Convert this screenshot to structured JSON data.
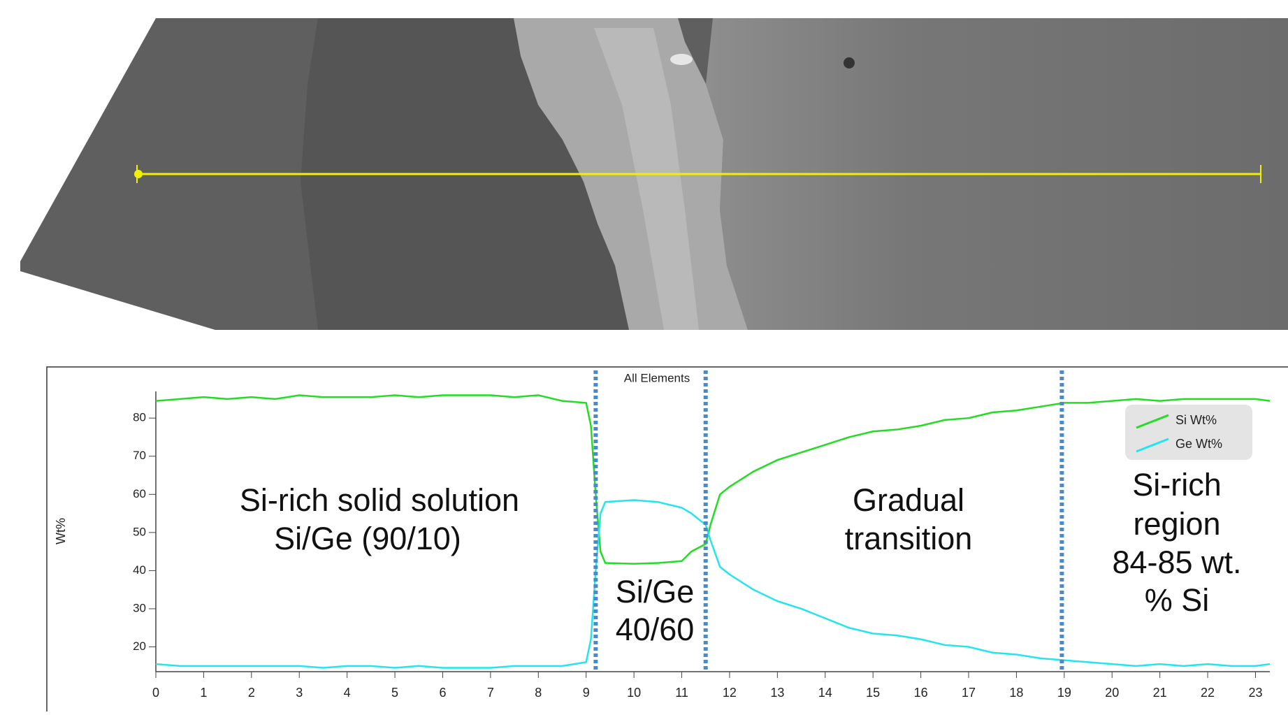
{
  "chart_data": {
    "type": "line",
    "title": "All Elements",
    "y_label": "Wt%",
    "x": [
      0,
      0.5,
      1,
      1.5,
      2,
      2.5,
      3,
      3.5,
      4,
      4.5,
      5,
      5.5,
      6,
      6.5,
      7,
      7.5,
      8,
      8.5,
      9,
      9.1,
      9.2,
      9.3,
      9.4,
      10,
      10.5,
      11,
      11.2,
      11.5,
      11.6,
      11.8,
      12,
      12.5,
      13,
      13.5,
      14,
      14.5,
      15,
      15.5,
      16,
      16.5,
      17,
      17.5,
      18,
      18.5,
      19,
      19.5,
      20,
      20.5,
      21,
      21.5,
      22,
      22.5,
      23,
      23.3
    ],
    "series": [
      {
        "name": "Si Wt%",
        "color": "#22dd22",
        "values": [
          84.5,
          85,
          85.5,
          85,
          85.5,
          85,
          86,
          85.5,
          85.5,
          85.5,
          86,
          85.5,
          86,
          86,
          86,
          85.5,
          86,
          84.5,
          84,
          78,
          60,
          45,
          42,
          41.8,
          42,
          42.5,
          45,
          47,
          52,
          60,
          62,
          66,
          69,
          71,
          73,
          75,
          76.5,
          77,
          78,
          79.5,
          80,
          81.5,
          82,
          83,
          84,
          84,
          84.5,
          85,
          84.5,
          85,
          85,
          85,
          85,
          84.5
        ]
      },
      {
        "name": "Ge Wt%",
        "color": "#22e5ee",
        "values": [
          15.5,
          15,
          15,
          15,
          15,
          15,
          15,
          14.5,
          15,
          15,
          14.5,
          15,
          14.5,
          14.5,
          14.5,
          15,
          15,
          15,
          16,
          22,
          40,
          55,
          58,
          58.5,
          58,
          56.5,
          55,
          52,
          48,
          41,
          39,
          35,
          32,
          30,
          27.5,
          25,
          23.5,
          23,
          22,
          20.5,
          20,
          18.5,
          18,
          17,
          16.5,
          16,
          15.5,
          15,
          15.5,
          15,
          15.5,
          15,
          15,
          15.5
        ]
      }
    ],
    "markers": [
      9.2,
      11.5,
      18.95
    ],
    "marker_color": "#4a8ac8",
    "annotations": [
      "Si-rich solid solution",
      "Si/Ge (90/10)",
      "Si/Ge",
      "40/60",
      "Gradual",
      "transition",
      "Si-rich",
      "region",
      "84-85 wt.",
      "% Si"
    ],
    "xlim": [
      0,
      23.3
    ],
    "ylim": [
      13.5,
      87
    ],
    "xticks": [
      0,
      1,
      2,
      3,
      4,
      5,
      6,
      7,
      8,
      9,
      10,
      11,
      12,
      13,
      14,
      15,
      16,
      17,
      18,
      19,
      20,
      21,
      22,
      23
    ],
    "yticks": [
      20,
      30,
      40,
      50,
      60,
      70,
      80
    ],
    "legend": "upper right"
  }
}
